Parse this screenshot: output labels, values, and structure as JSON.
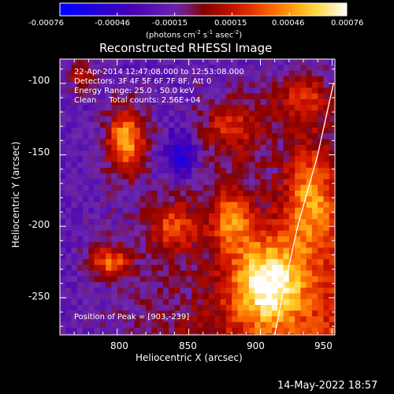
{
  "chart_data": {
    "type": "heatmap",
    "title": "Reconstructed RHESSI Image",
    "xlabel": "Heliocentric X (arcsec)",
    "ylabel": "Heliocentric Y (arcsec)",
    "xlim": [
      760,
      952
    ],
    "ylim": [
      -276,
      -83
    ],
    "x_ticks": [
      800,
      850,
      900,
      950
    ],
    "y_ticks": [
      -100,
      -150,
      -200,
      -250
    ],
    "colorbar": {
      "ticks": [
        "-0.00076",
        "-0.00046",
        "-0.00015",
        "0.00015",
        "0.00046",
        "0.00076"
      ],
      "range": [
        -0.00076,
        0.00076
      ],
      "label_prefix": "(photons cm",
      "label_sup1": "-2",
      "label_mid1": " s",
      "label_sup2": "-1",
      "label_mid2": " asec",
      "label_sup3": "-2",
      "label_suffix": ")"
    },
    "annotations": [
      "22-Apr-2014 12:47:08.000 to 12:53:08.000",
      "Detectors: 3F 4F 5F 6F 7F 8F, Att 0",
      "Energy Range: 25.0 - 50.0 keV",
      "Clean     Total counts: 2.56E+04"
    ],
    "peak_label": "Position of Peak = [903,-239]",
    "peak": [
      903,
      -239
    ],
    "limb_curve": [
      [
        951,
        -100
      ],
      [
        940,
        -150
      ],
      [
        926,
        -200
      ],
      [
        915,
        -250
      ],
      [
        910,
        -276
      ]
    ],
    "hotspots": [
      {
        "x": 806,
        "y": -140,
        "value": 0.0007,
        "sx": 9,
        "sy": 16
      },
      {
        "x": 840,
        "y": -200,
        "value": 0.0004,
        "sx": 12,
        "sy": 12
      },
      {
        "x": 880,
        "y": -195,
        "value": 0.0005,
        "sx": 10,
        "sy": 14
      },
      {
        "x": 905,
        "y": -240,
        "value": 0.00076,
        "sx": 18,
        "sy": 22
      },
      {
        "x": 935,
        "y": -180,
        "value": 0.0005,
        "sx": 12,
        "sy": 26
      },
      {
        "x": 795,
        "y": -225,
        "value": 0.0005,
        "sx": 10,
        "sy": 8
      },
      {
        "x": 880,
        "y": -130,
        "value": 0.00035,
        "sx": 15,
        "sy": 15
      },
      {
        "x": 930,
        "y": -110,
        "value": 0.0004,
        "sx": 14,
        "sy": 12
      },
      {
        "x": 775,
        "y": -95,
        "value": 0.0003,
        "sx": 8,
        "sy": 8
      },
      {
        "x": 845,
        "y": -150,
        "value": -0.0004,
        "sx": 8,
        "sy": 12
      }
    ]
  },
  "footer_timestamp": "14-May-2022 18:57"
}
